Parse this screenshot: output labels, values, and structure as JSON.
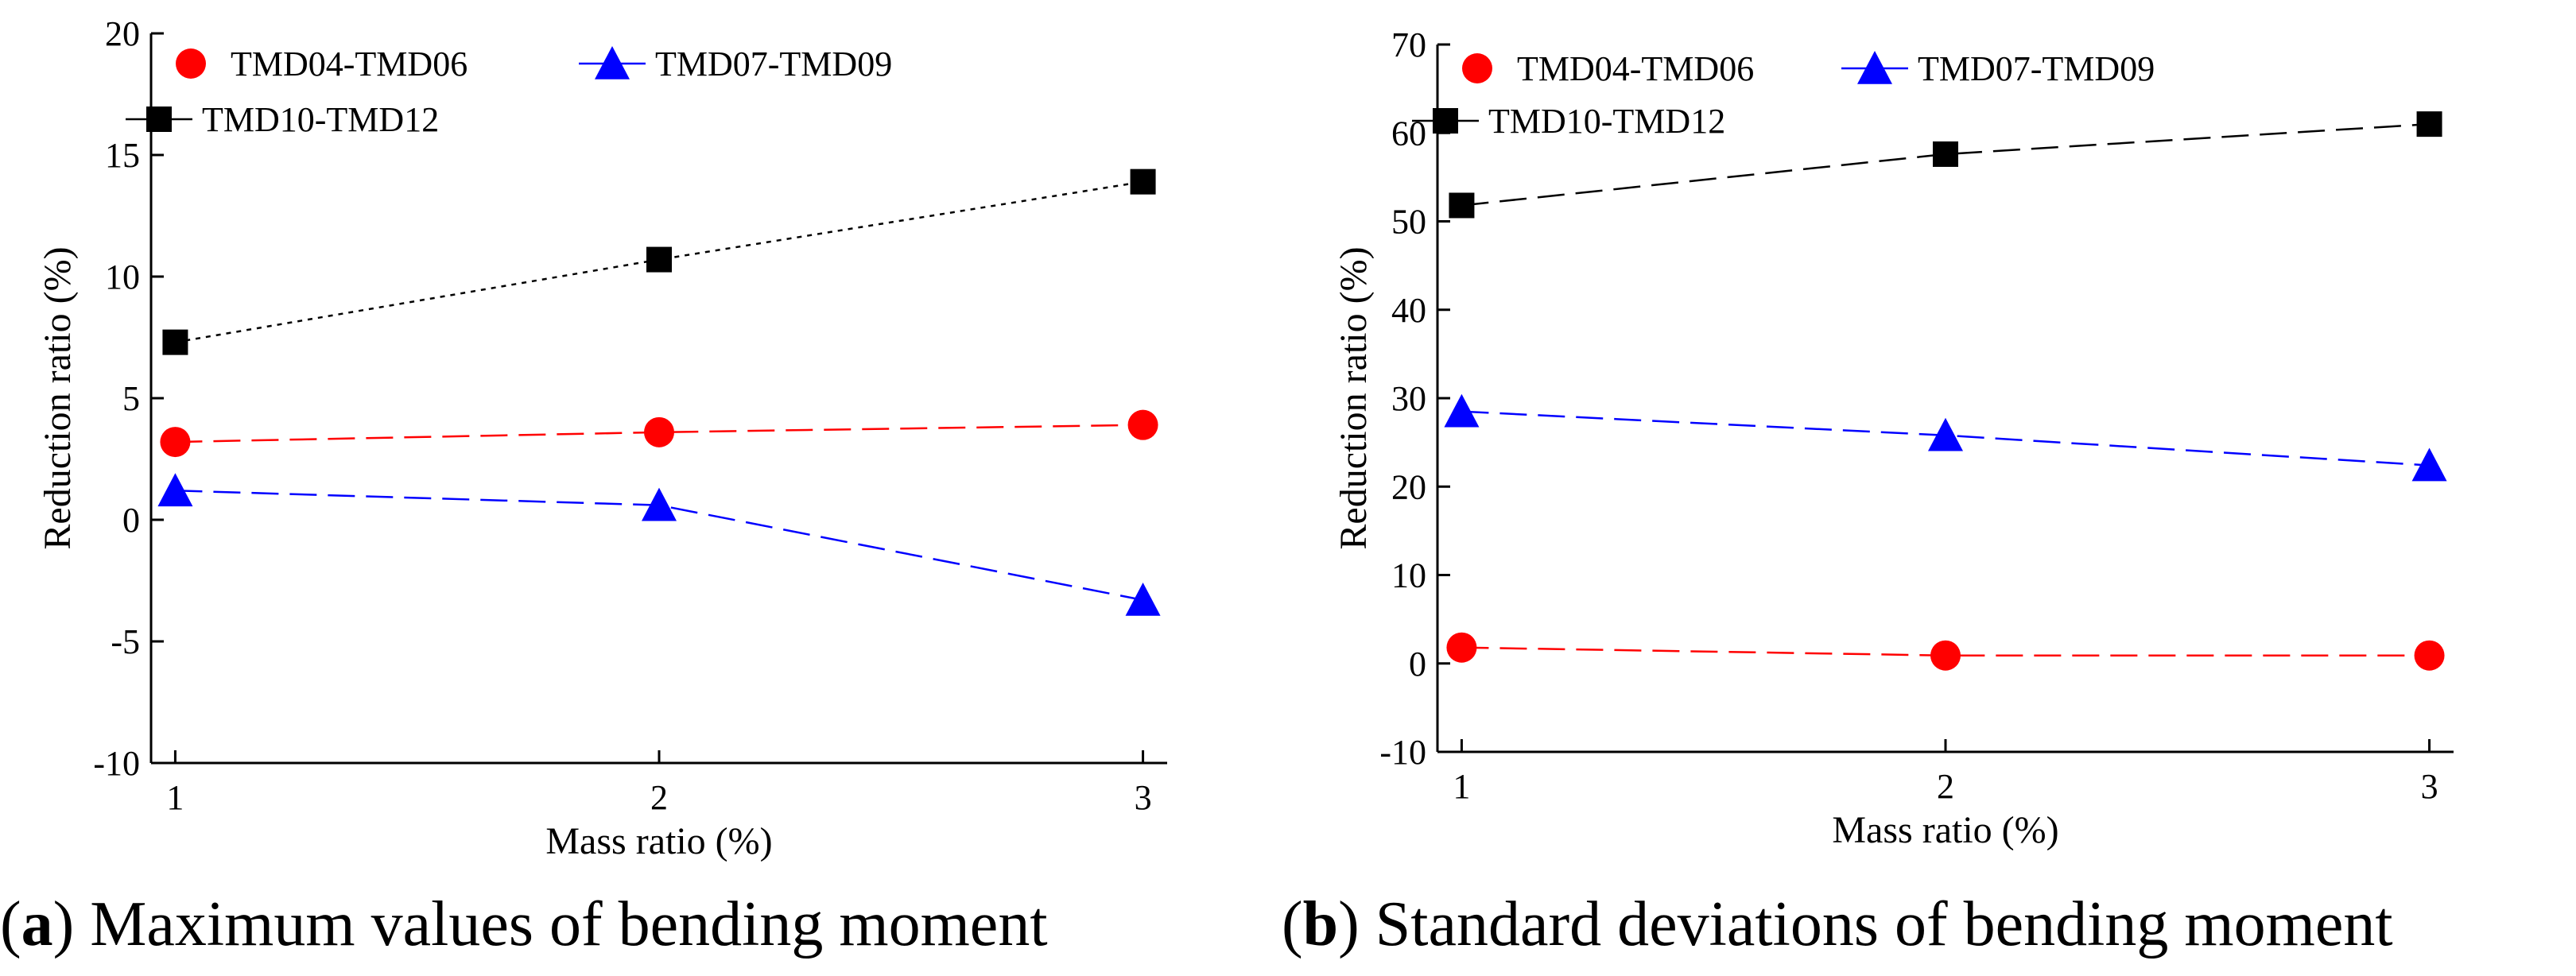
{
  "chart_data": [
    {
      "type": "line",
      "id": "a",
      "xlabel": "Mass ratio (%)",
      "ylabel": "Reduction ratio (%)",
      "x": [
        1,
        2,
        3
      ],
      "xticks": [
        "1",
        "2",
        "3"
      ],
      "xlim": [
        0.95,
        3.05
      ],
      "ylim": [
        -10,
        20
      ],
      "yticks": [
        "-10",
        "-5",
        "0",
        "5",
        "10",
        "15",
        "20"
      ],
      "grid": false,
      "legend_position": "top-left",
      "series": [
        {
          "name": "TMD04-TMD06",
          "marker": "circle",
          "color": "#ff0000",
          "dash": "dashed",
          "values": [
            3.2,
            3.6,
            3.9
          ]
        },
        {
          "name": "TMD07-TMD09",
          "marker": "triangle",
          "color": "#0000ff",
          "dash": "dashed",
          "values": [
            1.2,
            0.6,
            -3.3
          ]
        },
        {
          "name": "TMD10-TMD12",
          "marker": "square",
          "color": "#000000",
          "dash": "dotted",
          "values": [
            7.3,
            10.7,
            13.9
          ]
        }
      ],
      "caption": {
        "letter": "a",
        "text": "Maximum values of bending moment"
      }
    },
    {
      "type": "line",
      "id": "b",
      "xlabel": "Mass ratio (%)",
      "ylabel": "Reduction ratio (%)",
      "x": [
        1,
        2,
        3
      ],
      "xticks": [
        "1",
        "2",
        "3"
      ],
      "xlim": [
        0.95,
        3.05
      ],
      "ylim": [
        -10,
        70
      ],
      "yticks": [
        "-10",
        "0",
        "10",
        "20",
        "30",
        "40",
        "50",
        "60",
        "70"
      ],
      "grid": false,
      "legend_position": "top-left",
      "series": [
        {
          "name": "TMD04-TMD06",
          "marker": "circle",
          "color": "#ff0000",
          "dash": "dashed",
          "values": [
            1.8,
            0.9,
            0.9
          ]
        },
        {
          "name": "TMD07-TMD09",
          "marker": "triangle",
          "color": "#0000ff",
          "dash": "dashed",
          "values": [
            28.5,
            25.8,
            22.4
          ]
        },
        {
          "name": "TMD10-TMD12",
          "marker": "square",
          "color": "#000000",
          "dash": "dashed",
          "values": [
            51.8,
            57.6,
            61.0
          ]
        }
      ],
      "caption": {
        "letter": "b",
        "text": "Standard deviations of bending moment"
      }
    }
  ]
}
